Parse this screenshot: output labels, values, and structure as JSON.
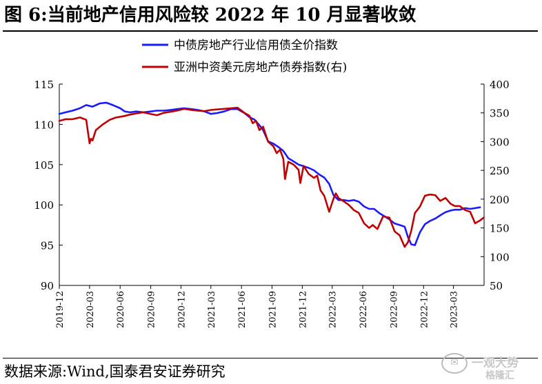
{
  "figure": {
    "title": "图 6:当前地产信用风险较 2022 年 10 月显著收敛",
    "source": "数据来源:Wind,国泰君安证券研究",
    "watermark": {
      "line1": "一观大势",
      "line2": "格隆汇"
    }
  },
  "chart_data": {
    "type": "line",
    "title": "",
    "xlabel": "",
    "ylabel": "",
    "y2label": "",
    "ylim": [
      90,
      115
    ],
    "y2lim": [
      50,
      400
    ],
    "yticks": [
      90,
      95,
      100,
      105,
      110,
      115
    ],
    "y2ticks": [
      50,
      100,
      150,
      200,
      250,
      300,
      350,
      400
    ],
    "xlim": [
      "2019-12",
      "2023-06"
    ],
    "xticks": [
      "2019-12",
      "2020-03",
      "2020-06",
      "2020-09",
      "2020-12",
      "2021-03",
      "2021-06",
      "2021-09",
      "2021-12",
      "2022-03",
      "2022-06",
      "2022-09",
      "2022-12",
      "2023-03"
    ],
    "grid": false,
    "legend": {
      "placement": "top-center"
    },
    "colors": {
      "blue": "#1a1aff",
      "red": "#c00000"
    },
    "series": [
      {
        "name": "中债房地产行业信用债全价指数",
        "axis": "left",
        "color": "#1a1aff",
        "x": [
          "2019-12-01",
          "2019-12-20",
          "2020-01-10",
          "2020-02-01",
          "2020-02-20",
          "2020-03-10",
          "2020-04-01",
          "2020-04-20",
          "2020-05-10",
          "2020-06-01",
          "2020-06-15",
          "2020-07-01",
          "2020-07-20",
          "2020-08-10",
          "2020-09-01",
          "2020-09-20",
          "2020-10-10",
          "2020-11-01",
          "2020-11-20",
          "2020-12-10",
          "2021-01-01",
          "2021-01-20",
          "2021-02-10",
          "2021-03-01",
          "2021-03-20",
          "2021-04-10",
          "2021-05-01",
          "2021-05-20",
          "2021-06-10",
          "2021-06-25",
          "2021-07-10",
          "2021-07-25",
          "2021-08-05",
          "2021-08-20",
          "2021-09-05",
          "2021-09-20",
          "2021-10-05",
          "2021-10-20",
          "2021-11-05",
          "2021-11-20",
          "2021-12-05",
          "2021-12-20",
          "2022-01-05",
          "2022-01-20",
          "2022-02-05",
          "2022-02-20",
          "2022-03-05",
          "2022-03-20",
          "2022-04-05",
          "2022-04-20",
          "2022-05-05",
          "2022-05-20",
          "2022-06-05",
          "2022-06-20",
          "2022-07-05",
          "2022-07-20",
          "2022-08-05",
          "2022-08-20",
          "2022-09-05",
          "2022-09-20",
          "2022-10-05",
          "2022-10-15",
          "2022-10-25",
          "2022-11-05",
          "2022-11-20",
          "2022-12-05",
          "2022-12-20",
          "2023-01-05",
          "2023-01-20",
          "2023-02-05",
          "2023-02-20",
          "2023-03-05",
          "2023-03-20",
          "2023-04-05",
          "2023-04-20",
          "2023-05-05",
          "2023-05-20"
        ],
        "values": [
          111.3,
          111.5,
          111.7,
          112.0,
          112.4,
          112.2,
          112.6,
          112.7,
          112.4,
          112.0,
          111.6,
          111.5,
          111.6,
          111.5,
          111.6,
          111.7,
          111.7,
          111.8,
          111.9,
          112.0,
          111.9,
          111.8,
          111.6,
          111.3,
          111.4,
          111.6,
          111.9,
          111.9,
          111.4,
          110.9,
          110.6,
          109.9,
          109.3,
          107.9,
          107.6,
          107.2,
          106.7,
          105.8,
          105.4,
          105.0,
          104.8,
          104.6,
          104.3,
          103.8,
          103.4,
          102.6,
          101.2,
          100.6,
          100.6,
          100.5,
          100.6,
          100.4,
          99.8,
          99.5,
          99.5,
          99.0,
          98.6,
          98.2,
          97.7,
          97.5,
          97.3,
          96.0,
          95.1,
          95.0,
          96.6,
          97.6,
          98.0,
          98.3,
          98.7,
          99.1,
          99.3,
          99.4,
          99.4,
          99.6,
          99.5,
          99.6,
          99.7
        ]
      },
      {
        "name": "亚洲中资美元房地产债券指数(右)",
        "axis": "right",
        "color": "#c00000",
        "x": [
          "2019-12-01",
          "2019-12-20",
          "2020-01-10",
          "2020-02-01",
          "2020-02-20",
          "2020-03-01",
          "2020-03-05",
          "2020-03-10",
          "2020-03-20",
          "2020-04-10",
          "2020-05-01",
          "2020-05-20",
          "2020-06-10",
          "2020-07-01",
          "2020-07-20",
          "2020-08-10",
          "2020-09-01",
          "2020-09-20",
          "2020-10-10",
          "2020-11-01",
          "2020-11-20",
          "2020-12-10",
          "2021-01-01",
          "2021-01-20",
          "2021-02-10",
          "2021-03-01",
          "2021-03-20",
          "2021-04-10",
          "2021-05-01",
          "2021-05-20",
          "2021-06-10",
          "2021-06-25",
          "2021-07-05",
          "2021-07-15",
          "2021-07-25",
          "2021-08-05",
          "2021-08-20",
          "2021-09-05",
          "2021-09-15",
          "2021-09-25",
          "2021-10-05",
          "2021-10-10",
          "2021-10-20",
          "2021-11-05",
          "2021-11-20",
          "2021-11-25",
          "2021-12-05",
          "2021-12-20",
          "2022-01-05",
          "2022-01-15",
          "2022-01-25",
          "2022-02-05",
          "2022-02-20",
          "2022-03-05",
          "2022-03-12",
          "2022-03-20",
          "2022-04-05",
          "2022-04-20",
          "2022-05-05",
          "2022-05-20",
          "2022-06-05",
          "2022-06-20",
          "2022-07-01",
          "2022-07-15",
          "2022-08-01",
          "2022-08-20",
          "2022-09-05",
          "2022-09-20",
          "2022-10-05",
          "2022-10-15",
          "2022-10-25",
          "2022-11-05",
          "2022-11-20",
          "2022-12-05",
          "2022-12-20",
          "2023-01-05",
          "2023-01-20",
          "2023-02-05",
          "2023-02-20",
          "2023-03-05",
          "2023-03-20",
          "2023-04-05",
          "2023-04-20",
          "2023-05-05",
          "2023-05-20",
          "2023-05-31"
        ],
        "values": [
          336,
          339,
          339,
          342,
          338,
          297,
          305,
          302,
          320,
          330,
          338,
          342,
          344,
          347,
          349,
          351,
          348,
          346,
          350,
          352,
          354,
          357,
          355,
          354,
          353,
          355,
          356,
          357,
          358,
          359,
          350,
          345,
          332,
          336,
          320,
          326,
          300,
          292,
          280,
          286,
          270,
          235,
          265,
          260,
          251,
          228,
          258,
          244,
          237,
          241,
          215,
          206,
          178,
          201,
          210,
          202,
          196,
          190,
          181,
          176,
          158,
          150,
          155,
          148,
          170,
          168,
          144,
          137,
          117,
          125,
          145,
          176,
          187,
          206,
          208,
          207,
          197,
          202,
          192,
          188,
          188,
          181,
          178,
          158,
          163,
          168
        ]
      }
    ]
  }
}
